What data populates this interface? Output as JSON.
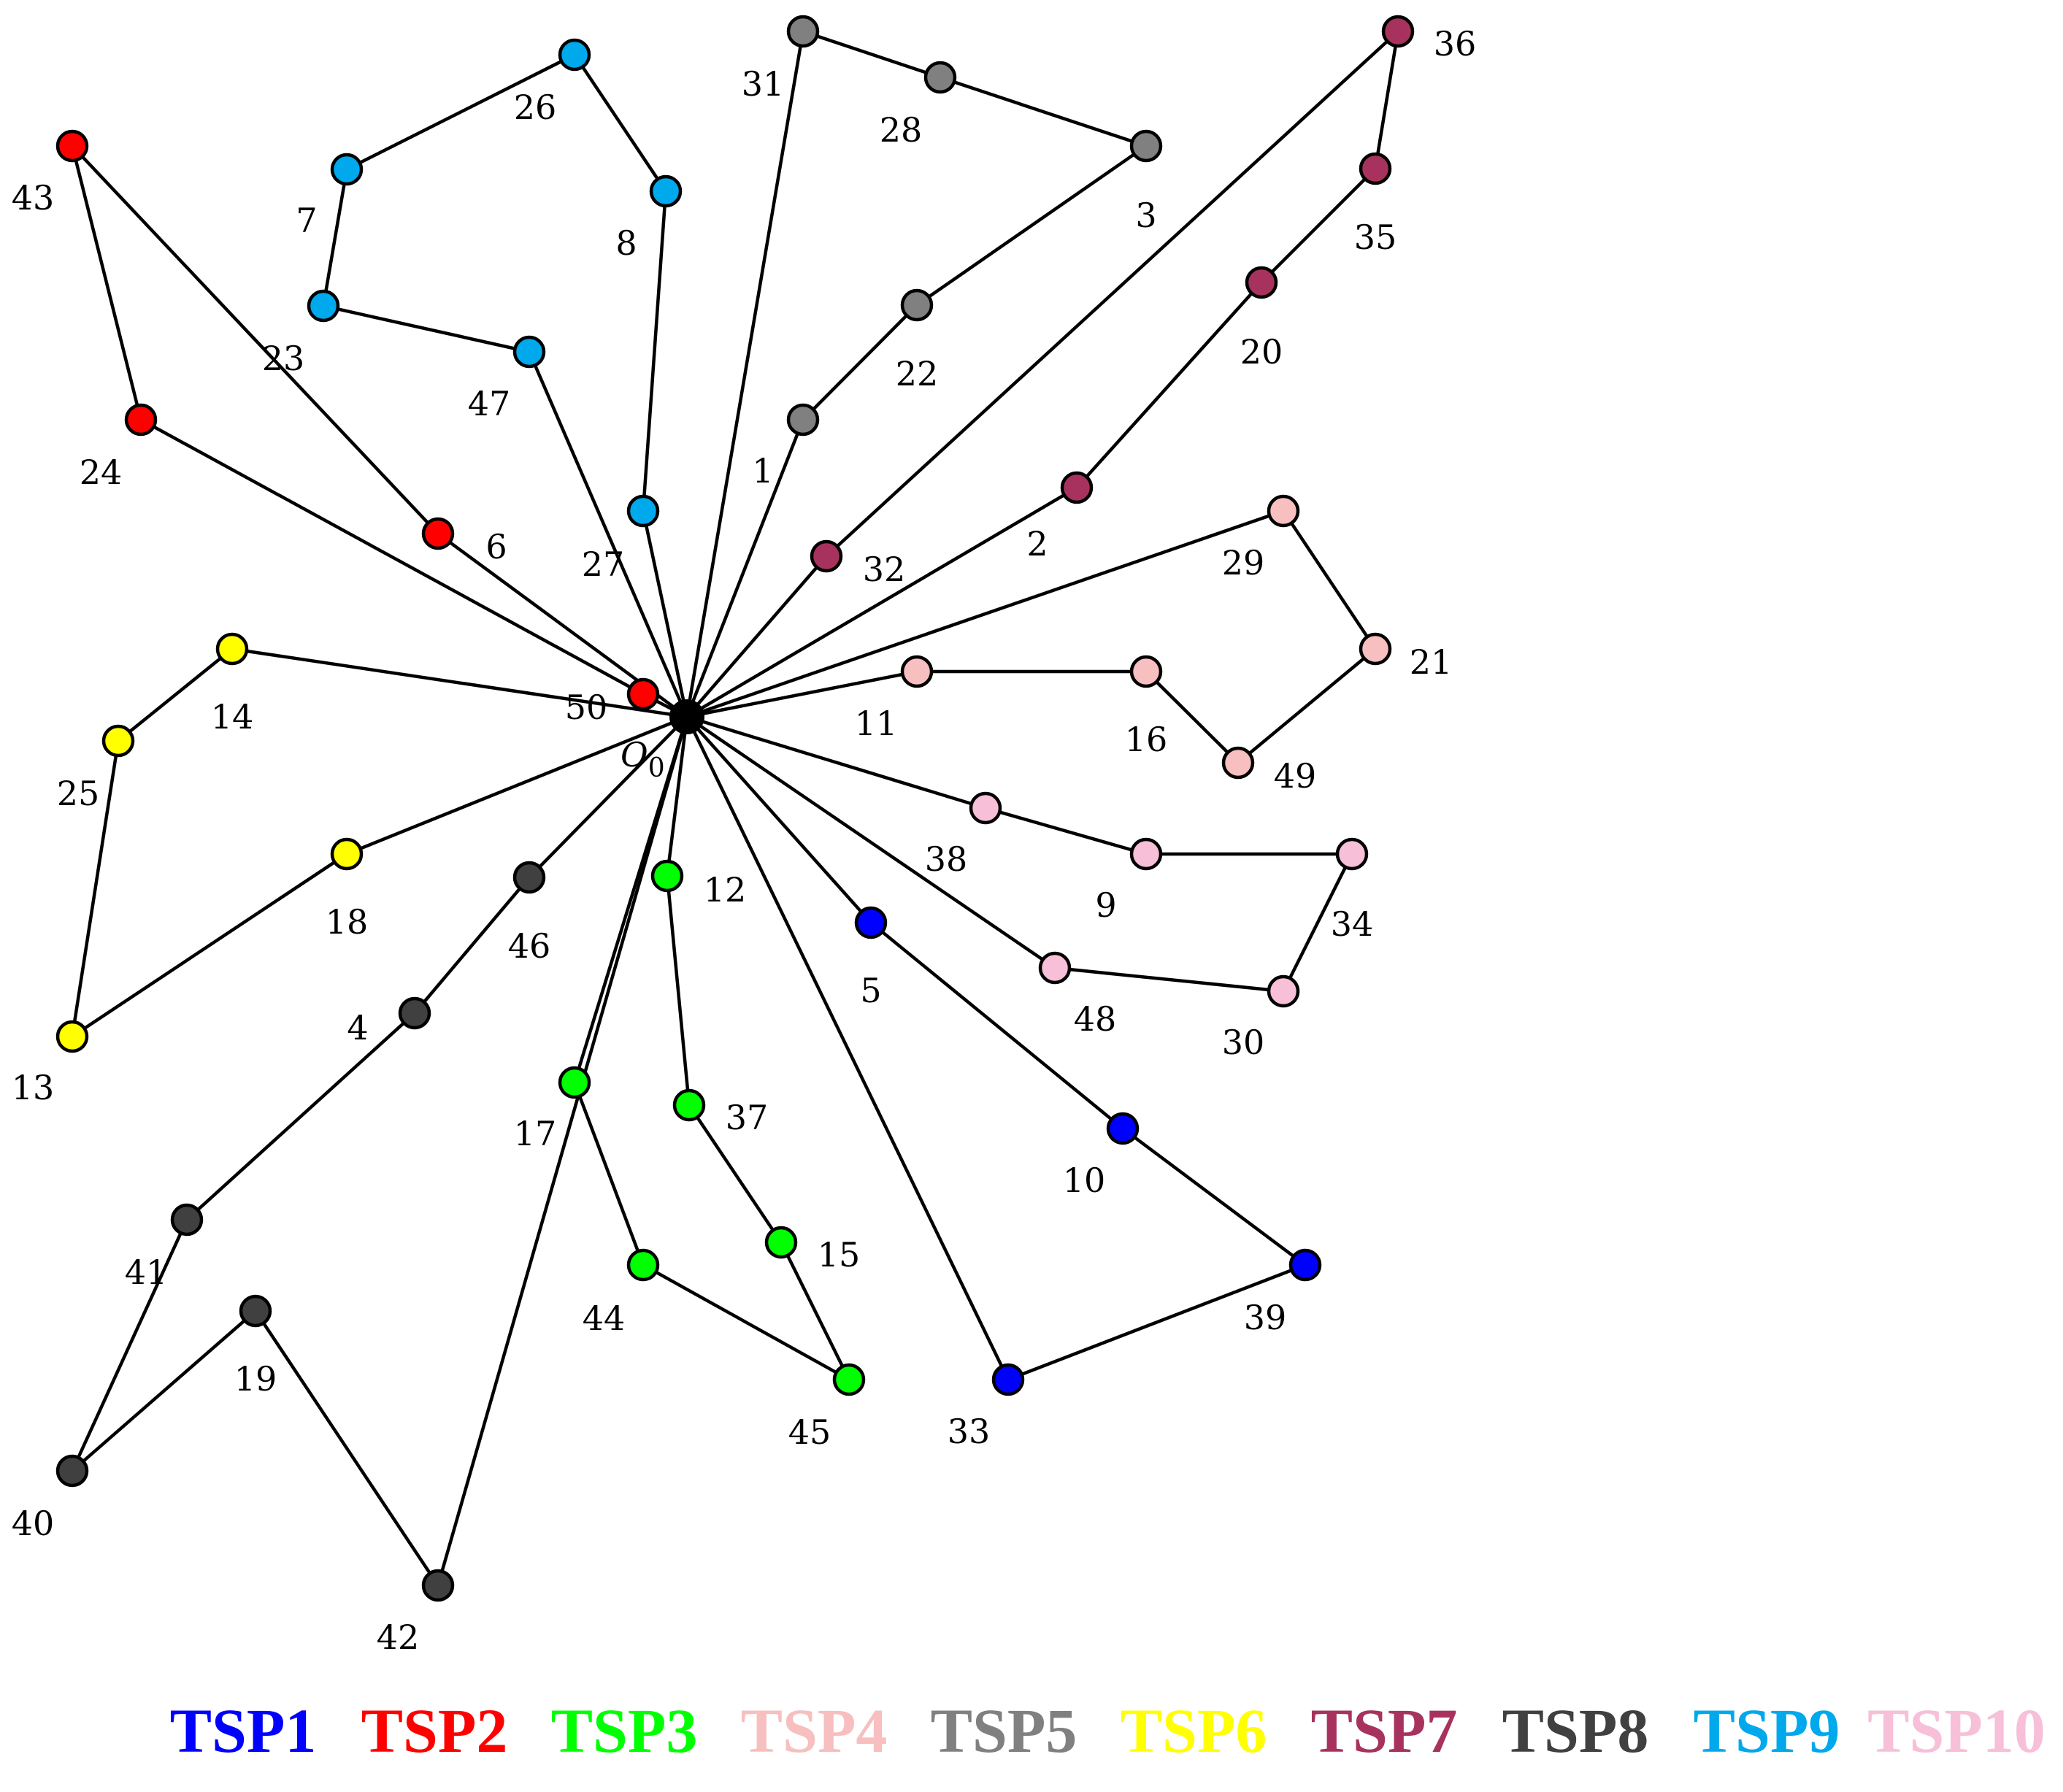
{
  "depot": {
    "label": "O",
    "subscript": "0"
  },
  "routes": [
    {
      "id": "TSP1",
      "color": "#0000ff",
      "nodes": [
        "5",
        "10",
        "39",
        "33"
      ]
    },
    {
      "id": "TSP2",
      "color": "#ff0000",
      "nodes": [
        "6",
        "43",
        "24",
        "50"
      ]
    },
    {
      "id": "TSP3",
      "color": "#00ff00",
      "nodes": [
        "12",
        "37",
        "15",
        "45",
        "44",
        "17"
      ]
    },
    {
      "id": "TSP4",
      "color": "#f7bfbf",
      "nodes": [
        "11",
        "16",
        "49",
        "21",
        "29"
      ]
    },
    {
      "id": "TSP5",
      "color": "#808080",
      "nodes": [
        "1",
        "22",
        "3",
        "28",
        "31"
      ]
    },
    {
      "id": "TSP6",
      "color": "#ffff00",
      "nodes": [
        "14",
        "25",
        "13",
        "18"
      ]
    },
    {
      "id": "TSP7",
      "color": "#a8325e",
      "nodes": [
        "2",
        "20",
        "35",
        "36",
        "32"
      ]
    },
    {
      "id": "TSP8",
      "color": "#404040",
      "nodes": [
        "46",
        "4",
        "41",
        "40",
        "19",
        "42"
      ]
    },
    {
      "id": "TSP9",
      "color": "#00a8ec",
      "nodes": [
        "27",
        "8",
        "26",
        "7",
        "23",
        "47"
      ]
    },
    {
      "id": "TSP10",
      "color": "#f7bfd8",
      "nodes": [
        "38",
        "9",
        "34",
        "30",
        "48"
      ]
    }
  ],
  "legend": [
    "TSP1",
    "TSP2",
    "TSP3",
    "TSP4",
    "TSP5",
    "TSP6",
    "TSP7",
    "TSP8",
    "TSP9",
    "TSP10"
  ]
}
